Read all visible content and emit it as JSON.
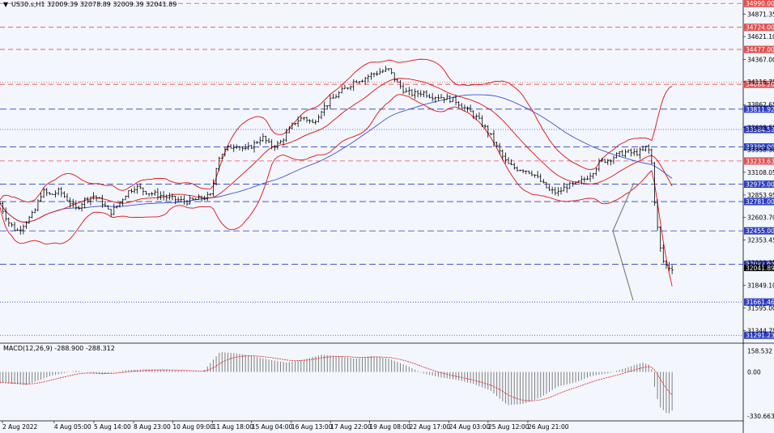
{
  "header": {
    "symbol": "US30.s,H1",
    "ohlc": "32009.39 32078.89 32009.39 32041.89",
    "macd_label": "MACD(12,26,9) -288.900 -288.312"
  },
  "colors": {
    "background": "#f3f6fc",
    "candle": "#000000",
    "bollinger": "#e01010",
    "ma": "#4050d0",
    "red_level": "#e05050",
    "blue_level": "#3040c0",
    "macd_hist": "#808080",
    "macd_signal": "#e02020"
  },
  "chart_data": {
    "type": "candlestick",
    "ylim": [
      31221,
      35010
    ],
    "price_ticks": [
      "34871.35",
      "34621.10",
      "34367.00",
      "34116.75",
      "33862.65",
      "33608.55",
      "33358.30",
      "33108.05",
      "32853.95",
      "32603.70",
      "32353.45",
      "32099.35",
      "31849.10",
      "31595.00",
      "31344.75"
    ],
    "time_labels": [
      "2 Aug 2022",
      "4 Aug 05:00",
      "5 Aug 14:00",
      "8 Aug 23:00",
      "10 Aug 09:00",
      "11 Aug 18:00",
      "15 Aug 04:00",
      "16 Aug 13:00",
      "17 Aug 22:00",
      "19 Aug 08:00",
      "22 Aug 17:00",
      "24 Aug 03:00",
      "25 Aug 12:00",
      "26 Aug 21:00"
    ],
    "time_label_x": [
      0,
      0.082,
      0.145,
      0.208,
      0.27,
      0.333,
      0.395,
      0.458,
      0.52,
      0.582,
      0.645,
      0.708,
      0.77,
      0.833
    ],
    "red_levels": [
      34990.0,
      34724.0,
      34477.0,
      34088.2,
      33233.63
    ],
    "red_dotted_levels": [
      34110.0
    ],
    "blue_levels": [
      33811.92,
      33390.0,
      32975.0,
      32781.0,
      32455.0,
      32083.0
    ],
    "blue_dotted_levels": [
      33584.59,
      31661.46,
      31291.23
    ],
    "current_price": 32041.89,
    "close_path": [
      [
        0.0,
        32760
      ],
      [
        0.01,
        32550
      ],
      [
        0.02,
        32450
      ],
      [
        0.03,
        32550
      ],
      [
        0.04,
        32650
      ],
      [
        0.05,
        32900
      ],
      [
        0.06,
        32850
      ],
      [
        0.07,
        32900
      ],
      [
        0.08,
        32800
      ],
      [
        0.09,
        32700
      ],
      [
        0.1,
        32800
      ],
      [
        0.11,
        32850
      ],
      [
        0.12,
        32780
      ],
      [
        0.13,
        32650
      ],
      [
        0.14,
        32750
      ],
      [
        0.15,
        32880
      ],
      [
        0.16,
        32950
      ],
      [
        0.17,
        32900
      ],
      [
        0.18,
        32870
      ],
      [
        0.19,
        32850
      ],
      [
        0.2,
        32820
      ],
      [
        0.21,
        32800
      ],
      [
        0.22,
        32780
      ],
      [
        0.23,
        32800
      ],
      [
        0.24,
        32820
      ],
      [
        0.25,
        32850
      ],
      [
        0.255,
        33150
      ],
      [
        0.26,
        33300
      ],
      [
        0.27,
        33380
      ],
      [
        0.28,
        33420
      ],
      [
        0.29,
        33350
      ],
      [
        0.3,
        33420
      ],
      [
        0.31,
        33500
      ],
      [
        0.32,
        33400
      ],
      [
        0.33,
        33420
      ],
      [
        0.34,
        33550
      ],
      [
        0.35,
        33680
      ],
      [
        0.36,
        33720
      ],
      [
        0.37,
        33650
      ],
      [
        0.38,
        33800
      ],
      [
        0.39,
        33900
      ],
      [
        0.4,
        33980
      ],
      [
        0.41,
        34050
      ],
      [
        0.42,
        34130
      ],
      [
        0.43,
        34150
      ],
      [
        0.44,
        34200
      ],
      [
        0.45,
        34230
      ],
      [
        0.46,
        34250
      ],
      [
        0.47,
        34100
      ],
      [
        0.48,
        34000
      ],
      [
        0.49,
        33980
      ],
      [
        0.5,
        34000
      ],
      [
        0.51,
        33960
      ],
      [
        0.52,
        33950
      ],
      [
        0.53,
        33930
      ],
      [
        0.54,
        33900
      ],
      [
        0.55,
        33820
      ],
      [
        0.56,
        33750
      ],
      [
        0.57,
        33650
      ],
      [
        0.58,
        33520
      ],
      [
        0.59,
        33350
      ],
      [
        0.6,
        33200
      ],
      [
        0.61,
        33150
      ],
      [
        0.62,
        33140
      ],
      [
        0.63,
        33100
      ],
      [
        0.64,
        33000
      ],
      [
        0.65,
        32900
      ],
      [
        0.66,
        32880
      ],
      [
        0.67,
        32950
      ],
      [
        0.68,
        32970
      ],
      [
        0.69,
        33020
      ],
      [
        0.7,
        33100
      ],
      [
        0.71,
        33230
      ],
      [
        0.72,
        33250
      ],
      [
        0.73,
        33300
      ],
      [
        0.74,
        33330
      ],
      [
        0.75,
        33320
      ],
      [
        0.76,
        33340
      ],
      [
        0.765,
        33400
      ],
      [
        0.77,
        33300
      ],
      [
        0.775,
        32700
      ],
      [
        0.78,
        32300
      ],
      [
        0.785,
        32100
      ],
      [
        0.79,
        32050
      ],
      [
        0.795,
        32042
      ]
    ],
    "macd": {
      "ylim": [
        -350,
        180
      ],
      "ticks": [
        "158.532",
        "0.00",
        "-330.663"
      ],
      "hist": [
        [
          0.0,
          -80
        ],
        [
          0.03,
          -100
        ],
        [
          0.06,
          -30
        ],
        [
          0.09,
          10
        ],
        [
          0.12,
          -20
        ],
        [
          0.15,
          15
        ],
        [
          0.18,
          20
        ],
        [
          0.21,
          10
        ],
        [
          0.24,
          0
        ],
        [
          0.26,
          150
        ],
        [
          0.28,
          140
        ],
        [
          0.3,
          120
        ],
        [
          0.32,
          90
        ],
        [
          0.34,
          70
        ],
        [
          0.36,
          95
        ],
        [
          0.38,
          130
        ],
        [
          0.4,
          120
        ],
        [
          0.42,
          100
        ],
        [
          0.44,
          120
        ],
        [
          0.46,
          100
        ],
        [
          0.48,
          50
        ],
        [
          0.5,
          -10
        ],
        [
          0.52,
          -40
        ],
        [
          0.54,
          -60
        ],
        [
          0.56,
          -90
        ],
        [
          0.58,
          -140
        ],
        [
          0.6,
          -250
        ],
        [
          0.62,
          -240
        ],
        [
          0.64,
          -190
        ],
        [
          0.66,
          -110
        ],
        [
          0.68,
          -80
        ],
        [
          0.7,
          -30
        ],
        [
          0.72,
          -10
        ],
        [
          0.74,
          30
        ],
        [
          0.76,
          70
        ],
        [
          0.77,
          50
        ],
        [
          0.775,
          -140
        ],
        [
          0.78,
          -260
        ],
        [
          0.79,
          -320
        ],
        [
          0.795,
          -290
        ]
      ]
    }
  }
}
